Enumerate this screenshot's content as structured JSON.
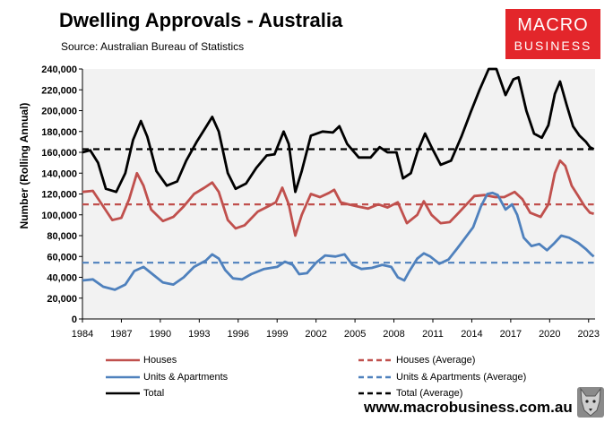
{
  "header": {
    "title": "Dwelling Approvals - Australia",
    "subtitle": "Source: Australian Bureau of Statistics"
  },
  "logo": {
    "line1": "MACRO",
    "line2": "BUSINESS",
    "color": "#e3262b"
  },
  "footer": {
    "website": "www.macrobusiness.com.au",
    "wolf_icon": "wolf-icon"
  },
  "chart_data": {
    "type": "line",
    "ylabel": "Number (Rolling Annual)",
    "xlabel": "",
    "ylim": [
      0,
      240000
    ],
    "xlim": [
      1984,
      2023.5
    ],
    "yticks": [
      "0",
      "20,000",
      "40,000",
      "60,000",
      "80,000",
      "100,000",
      "120,000",
      "140,000",
      "160,000",
      "180,000",
      "200,000",
      "220,000",
      "240,000"
    ],
    "xticks": [
      "1984",
      "1987",
      "1990",
      "1993",
      "1996",
      "1999",
      "2002",
      "2005",
      "2008",
      "2011",
      "2014",
      "2017",
      "2020",
      "2023"
    ],
    "grid": false,
    "legend_position": "bottom",
    "series": [
      {
        "name": "Houses",
        "color": "#c0504d",
        "dash": false,
        "points": [
          [
            1984,
            122000
          ],
          [
            1984.8,
            123000
          ],
          [
            1985.5,
            110000
          ],
          [
            1986.3,
            95000
          ],
          [
            1987,
            97000
          ],
          [
            1987.6,
            115000
          ],
          [
            1988.2,
            140000
          ],
          [
            1988.7,
            128000
          ],
          [
            1989.3,
            105000
          ],
          [
            1990.2,
            94000
          ],
          [
            1991,
            98000
          ],
          [
            1991.8,
            108000
          ],
          [
            1992.6,
            120000
          ],
          [
            1993.4,
            126000
          ],
          [
            1994,
            131000
          ],
          [
            1994.5,
            122000
          ],
          [
            1995.2,
            95000
          ],
          [
            1995.8,
            87000
          ],
          [
            1996.5,
            90000
          ],
          [
            1997.5,
            103000
          ],
          [
            1998.3,
            108000
          ],
          [
            1998.9,
            112000
          ],
          [
            1999.4,
            126000
          ],
          [
            1999.9,
            110000
          ],
          [
            2000.4,
            80000
          ],
          [
            2000.9,
            100000
          ],
          [
            2001.6,
            120000
          ],
          [
            2002.3,
            117000
          ],
          [
            2003,
            121000
          ],
          [
            2003.4,
            124000
          ],
          [
            2003.9,
            112000
          ],
          [
            2004.5,
            110000
          ],
          [
            2005.2,
            108000
          ],
          [
            2006,
            106000
          ],
          [
            2006.8,
            110000
          ],
          [
            2007.5,
            107000
          ],
          [
            2008.3,
            112000
          ],
          [
            2009,
            92000
          ],
          [
            2009.8,
            100000
          ],
          [
            2010.3,
            113000
          ],
          [
            2010.9,
            100000
          ],
          [
            2011.6,
            92000
          ],
          [
            2012.3,
            93000
          ],
          [
            2013,
            102000
          ],
          [
            2013.6,
            110000
          ],
          [
            2014.2,
            118000
          ],
          [
            2015,
            119000
          ],
          [
            2015.8,
            117000
          ],
          [
            2016.5,
            117000
          ],
          [
            2017.3,
            122000
          ],
          [
            2017.9,
            115000
          ],
          [
            2018.5,
            102000
          ],
          [
            2019.3,
            98000
          ],
          [
            2019.9,
            110000
          ],
          [
            2020.4,
            140000
          ],
          [
            2020.8,
            152000
          ],
          [
            2021.2,
            147000
          ],
          [
            2021.7,
            128000
          ],
          [
            2022.2,
            118000
          ],
          [
            2022.7,
            108000
          ],
          [
            2023.1,
            102000
          ],
          [
            2023.4,
            101000
          ]
        ]
      },
      {
        "name": "Houses (Average)",
        "color": "#c0504d",
        "dash": true,
        "points": [
          [
            1984,
            110000
          ],
          [
            2023.4,
            110000
          ]
        ]
      },
      {
        "name": "Units & Apartments",
        "color": "#4f81bd",
        "dash": false,
        "points": [
          [
            1984,
            37000
          ],
          [
            1984.8,
            38000
          ],
          [
            1985.6,
            31000
          ],
          [
            1986.5,
            28000
          ],
          [
            1987.3,
            33000
          ],
          [
            1988,
            46000
          ],
          [
            1988.7,
            50000
          ],
          [
            1989.4,
            43000
          ],
          [
            1990.2,
            35000
          ],
          [
            1991,
            33000
          ],
          [
            1991.8,
            40000
          ],
          [
            1992.6,
            50000
          ],
          [
            1993.5,
            56000
          ],
          [
            1994,
            62000
          ],
          [
            1994.5,
            58000
          ],
          [
            1995,
            47000
          ],
          [
            1995.6,
            39000
          ],
          [
            1996.3,
            38000
          ],
          [
            1997,
            43000
          ],
          [
            1998,
            48000
          ],
          [
            1999,
            50000
          ],
          [
            1999.6,
            55000
          ],
          [
            2000.2,
            52000
          ],
          [
            2000.7,
            43000
          ],
          [
            2001.3,
            44000
          ],
          [
            2002,
            54000
          ],
          [
            2002.7,
            61000
          ],
          [
            2003.5,
            60000
          ],
          [
            2004.2,
            62000
          ],
          [
            2004.8,
            52000
          ],
          [
            2005.5,
            48000
          ],
          [
            2006.3,
            49000
          ],
          [
            2007.1,
            52000
          ],
          [
            2007.8,
            50000
          ],
          [
            2008.3,
            40000
          ],
          [
            2008.8,
            37000
          ],
          [
            2009.2,
            46000
          ],
          [
            2009.8,
            58000
          ],
          [
            2010.3,
            63000
          ],
          [
            2010.8,
            60000
          ],
          [
            2011.5,
            53000
          ],
          [
            2012.2,
            57000
          ],
          [
            2012.9,
            68000
          ],
          [
            2013.5,
            78000
          ],
          [
            2014.1,
            88000
          ],
          [
            2014.7,
            108000
          ],
          [
            2015.2,
            120000
          ],
          [
            2015.6,
            121000
          ],
          [
            2016,
            119000
          ],
          [
            2016.6,
            105000
          ],
          [
            2017.1,
            110000
          ],
          [
            2017.5,
            100000
          ],
          [
            2018,
            78000
          ],
          [
            2018.6,
            70000
          ],
          [
            2019.2,
            72000
          ],
          [
            2019.8,
            66000
          ],
          [
            2020.3,
            72000
          ],
          [
            2020.9,
            80000
          ],
          [
            2021.5,
            78000
          ],
          [
            2022.2,
            73000
          ],
          [
            2022.8,
            67000
          ],
          [
            2023.2,
            62000
          ],
          [
            2023.4,
            60000
          ]
        ]
      },
      {
        "name": "Units & Apartments (Average)",
        "color": "#4f81bd",
        "dash": true,
        "points": [
          [
            1984,
            54000
          ],
          [
            2023.4,
            54000
          ]
        ]
      },
      {
        "name": "Total",
        "color": "#000000",
        "dash": false,
        "points": [
          [
            1984,
            160000
          ],
          [
            1984.6,
            162000
          ],
          [
            1985.2,
            150000
          ],
          [
            1985.8,
            125000
          ],
          [
            1986.6,
            122000
          ],
          [
            1987.3,
            140000
          ],
          [
            1987.9,
            172000
          ],
          [
            1988.5,
            190000
          ],
          [
            1989,
            175000
          ],
          [
            1989.7,
            142000
          ],
          [
            1990.5,
            128000
          ],
          [
            1991.3,
            132000
          ],
          [
            1992,
            152000
          ],
          [
            1992.8,
            170000
          ],
          [
            1993.5,
            184000
          ],
          [
            1994,
            194000
          ],
          [
            1994.5,
            180000
          ],
          [
            1995.2,
            140000
          ],
          [
            1995.8,
            125000
          ],
          [
            1996.6,
            130000
          ],
          [
            1997.4,
            145000
          ],
          [
            1998.2,
            157000
          ],
          [
            1998.8,
            158000
          ],
          [
            1999.5,
            180000
          ],
          [
            1999.9,
            168000
          ],
          [
            2000.4,
            122000
          ],
          [
            2000.9,
            142000
          ],
          [
            2001.6,
            176000
          ],
          [
            2002.5,
            180000
          ],
          [
            2003.3,
            179000
          ],
          [
            2003.8,
            185000
          ],
          [
            2004.4,
            168000
          ],
          [
            2005.3,
            155000
          ],
          [
            2006.2,
            155000
          ],
          [
            2006.9,
            165000
          ],
          [
            2007.5,
            160000
          ],
          [
            2008.2,
            160000
          ],
          [
            2008.7,
            135000
          ],
          [
            2009.3,
            140000
          ],
          [
            2009.8,
            160000
          ],
          [
            2010.4,
            178000
          ],
          [
            2010.9,
            165000
          ],
          [
            2011.6,
            148000
          ],
          [
            2012.4,
            152000
          ],
          [
            2013.2,
            175000
          ],
          [
            2013.9,
            198000
          ],
          [
            2014.6,
            220000
          ],
          [
            2015.3,
            240000
          ],
          [
            2015.9,
            240000
          ],
          [
            2016.6,
            215000
          ],
          [
            2017.2,
            230000
          ],
          [
            2017.6,
            232000
          ],
          [
            2018.2,
            200000
          ],
          [
            2018.8,
            178000
          ],
          [
            2019.4,
            174000
          ],
          [
            2019.9,
            186000
          ],
          [
            2020.4,
            216000
          ],
          [
            2020.8,
            228000
          ],
          [
            2021.3,
            206000
          ],
          [
            2021.8,
            185000
          ],
          [
            2022.3,
            176000
          ],
          [
            2022.8,
            170000
          ],
          [
            2023.1,
            165000
          ],
          [
            2023.4,
            163000
          ]
        ]
      },
      {
        "name": "Total (Average)",
        "color": "#000000",
        "dash": true,
        "points": [
          [
            1984,
            163000
          ],
          [
            2023.4,
            163000
          ]
        ]
      }
    ]
  }
}
